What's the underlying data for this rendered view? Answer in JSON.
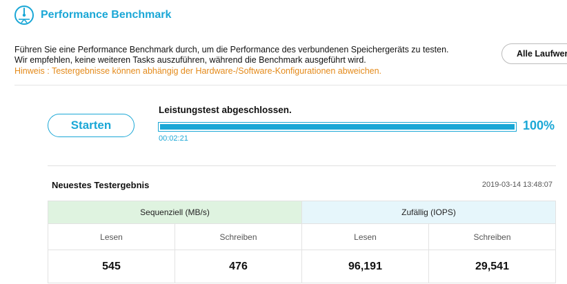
{
  "header": {
    "title": "Performance Benchmark",
    "icon": "speedometer-icon"
  },
  "description": {
    "line1": "Führen Sie eine Performance Benchmark durch, um die Performance des verbundenen Speichergeräts zu testen.",
    "line2": "Wir empfehlen, keine weiteren Tasks auszuführen, während die Benchmark ausgeführt wird.",
    "hint": "Hinweis : Testergebnisse können abhängig der Hardware-/Software-Konfigurationen abweichen."
  },
  "actions": {
    "all_drives_label": "Alle Laufwerke",
    "start_label": "Starten"
  },
  "progress": {
    "status": "Leistungstest abgeschlossen.",
    "percent_label": "100%",
    "percent": 100,
    "elapsed": "00:02:21"
  },
  "result": {
    "title": "Neuestes Testergebnis",
    "timestamp": "2019-03-14 13:48:07",
    "groups": {
      "sequential": "Sequenziell (MB/s)",
      "random": "Zufällig (IOPS)"
    },
    "columns": [
      "Lesen",
      "Schreiben",
      "Lesen",
      "Schreiben"
    ],
    "values": [
      "545",
      "476",
      "96,191",
      "29,541"
    ]
  },
  "colors": {
    "accent": "#1aa7d6",
    "hint": "#e48a1a",
    "seq_bg": "#dff3e0",
    "rnd_bg": "#e6f6fb"
  }
}
